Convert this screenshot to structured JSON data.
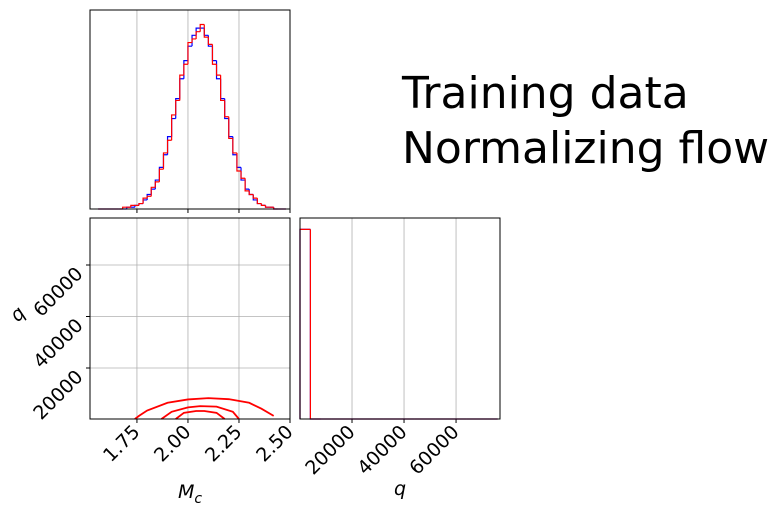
{
  "chart_data": [
    {
      "type": "histogram",
      "bins": [
        1.56,
        1.58,
        1.6,
        1.62,
        1.64,
        1.66,
        1.68,
        1.7,
        1.72,
        1.74,
        1.76,
        1.78,
        1.8,
        1.82,
        1.84,
        1.86,
        1.88,
        1.9,
        1.92,
        1.94,
        1.96,
        1.98,
        2.0,
        2.02,
        2.04,
        2.06,
        2.08,
        2.1,
        2.12,
        2.14,
        2.16,
        2.18,
        2.2,
        2.22,
        2.24,
        2.26,
        2.28,
        2.3,
        2.32,
        2.34,
        2.36,
        2.38,
        2.4,
        2.42,
        2.44,
        2.46,
        2.48
      ],
      "series": [
        {
          "name": "Training data",
          "color": "blue",
          "values": [
            0,
            0,
            0,
            0,
            0,
            0,
            0,
            1,
            1,
            2,
            3,
            5,
            8,
            11,
            16,
            23,
            30,
            40,
            50,
            61,
            72,
            82,
            90,
            96,
            100,
            100,
            96,
            90,
            82,
            72,
            61,
            50,
            40,
            30,
            23,
            16,
            11,
            8,
            5,
            3,
            2,
            1,
            1,
            0,
            0,
            0
          ]
        },
        {
          "name": "Normalizing flow",
          "color": "red",
          "values": [
            0,
            0,
            0,
            0,
            0,
            0,
            1,
            1,
            2,
            2,
            3,
            6,
            7,
            12,
            15,
            22,
            31,
            38,
            52,
            60,
            74,
            80,
            92,
            94,
            98,
            102,
            95,
            91,
            80,
            74,
            60,
            51,
            39,
            31,
            21,
            17,
            10,
            8,
            6,
            3,
            2,
            1,
            1,
            0,
            0,
            0
          ]
        }
      ],
      "xlim": [
        1.52,
        2.5
      ],
      "xticks": [
        1.75,
        2.0,
        2.25,
        2.5
      ],
      "show_xtick_labels": false,
      "ylim": [
        0,
        110
      ],
      "grid": true
    },
    {
      "type": "contour",
      "contours": [
        {
          "color": "red",
          "x": [
            1.74,
            1.76,
            1.8,
            1.9,
            2.0,
            2.1,
            2.2,
            2.3,
            2.36,
            2.42
          ],
          "y": [
            200,
            1400,
            3500,
            6500,
            7800,
            8300,
            7900,
            6500,
            4200,
            1400
          ]
        },
        {
          "color": "red",
          "x": [
            1.87,
            1.92,
            2.0,
            2.06,
            2.14,
            2.22,
            2.25
          ],
          "y": [
            200,
            3000,
            4700,
            5200,
            5000,
            3000,
            200
          ]
        },
        {
          "color": "red",
          "x": [
            1.94,
            1.98,
            2.04,
            2.08,
            2.14,
            2.18
          ],
          "y": [
            200,
            2600,
            3300,
            3300,
            2600,
            200
          ]
        }
      ],
      "xlim": [
        1.52,
        2.5
      ],
      "xticks": [
        {
          "value": 1.75,
          "label": "1.75"
        },
        {
          "value": 2.0,
          "label": "2.00"
        },
        {
          "value": 2.25,
          "label": "2.25"
        },
        {
          "value": 2.5,
          "label": "2.50"
        }
      ],
      "ylim": [
        200,
        78250
      ],
      "yticks": [
        20000,
        40000,
        60000
      ],
      "xlabel": [
        "M",
        "c"
      ],
      "ylabel": "q",
      "grid": true
    },
    {
      "type": "histogram",
      "bins": [
        0,
        4000,
        8000,
        12000,
        16000,
        20000,
        24000,
        28000,
        32000,
        36000,
        40000,
        44000,
        48000,
        52000,
        56000,
        60000,
        64000,
        68000,
        72000,
        76000
      ],
      "series": [
        {
          "name": "Training data",
          "color": "blue",
          "values": [
            100,
            0,
            0,
            0,
            0,
            0,
            0,
            0,
            0,
            0,
            0,
            0,
            0,
            0,
            0,
            0,
            0,
            0,
            0
          ]
        },
        {
          "name": "Normalizing flow",
          "color": "red",
          "values": [
            100,
            0,
            0,
            0,
            0,
            0,
            0,
            0,
            0,
            0,
            0,
            0,
            0,
            0,
            0,
            0,
            0,
            0,
            0
          ]
        }
      ],
      "xlim": [
        0,
        76900
      ],
      "xticks": [
        20000,
        40000,
        60000
      ],
      "show_xtick_labels": true,
      "xlabel": "q",
      "ylim": [
        0,
        106
      ],
      "grid": true
    }
  ]
}
